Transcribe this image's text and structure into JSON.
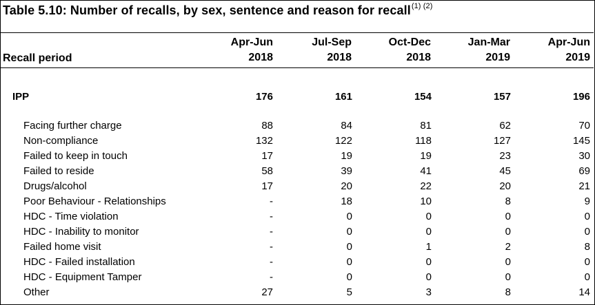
{
  "title": {
    "text": "Table 5.10: Number of recalls, by sex, sentence and reason for recall",
    "footnotes": "(1) (2)"
  },
  "header": {
    "row_label": "Recall period",
    "periods": [
      {
        "line1": "Apr-Jun",
        "line2": "2018"
      },
      {
        "line1": "Jul-Sep",
        "line2": "2018"
      },
      {
        "line1": "Oct-Dec",
        "line2": "2018"
      },
      {
        "line1": "Jan-Mar",
        "line2": "2019"
      },
      {
        "line1": "Apr-Jun",
        "line2": "2019"
      }
    ]
  },
  "total": {
    "label": "IPP",
    "values": [
      "176",
      "161",
      "154",
      "157",
      "196"
    ]
  },
  "rows": [
    {
      "label": "Facing further charge",
      "values": [
        "88",
        "84",
        "81",
        "62",
        "70"
      ]
    },
    {
      "label": "Non-compliance",
      "values": [
        "132",
        "122",
        "118",
        "127",
        "145"
      ]
    },
    {
      "label": "Failed to keep in touch",
      "values": [
        "17",
        "19",
        "19",
        "23",
        "30"
      ]
    },
    {
      "label": "Failed to reside",
      "values": [
        "58",
        "39",
        "41",
        "45",
        "69"
      ]
    },
    {
      "label": "Drugs/alcohol",
      "values": [
        "17",
        "20",
        "22",
        "20",
        "21"
      ]
    },
    {
      "label": "Poor Behaviour - Relationships",
      "values": [
        "-",
        "18",
        "10",
        "8",
        "9"
      ]
    },
    {
      "label": "HDC - Time violation",
      "values": [
        "-",
        "0",
        "0",
        "0",
        "0"
      ]
    },
    {
      "label": "HDC - Inability to monitor",
      "values": [
        "-",
        "0",
        "0",
        "0",
        "0"
      ]
    },
    {
      "label": "Failed home visit",
      "values": [
        "-",
        "0",
        "1",
        "2",
        "8"
      ]
    },
    {
      "label": "HDC - Failed installation",
      "values": [
        "-",
        "0",
        "0",
        "0",
        "0"
      ]
    },
    {
      "label": "HDC - Equipment Tamper",
      "values": [
        "-",
        "0",
        "0",
        "0",
        "0"
      ]
    },
    {
      "label": "Other",
      "values": [
        "27",
        "5",
        "3",
        "8",
        "14"
      ]
    }
  ]
}
